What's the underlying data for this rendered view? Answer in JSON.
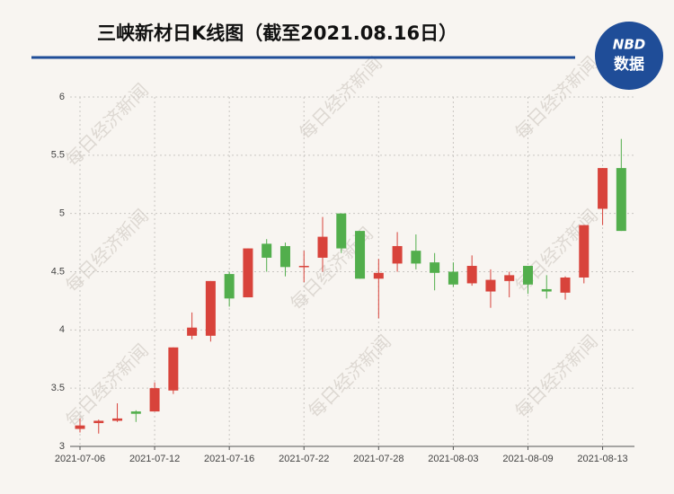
{
  "chart_data": {
    "type": "candlestick",
    "title": "三峡新材日K线图（截至2021.08.16日）",
    "logo": {
      "mark": "NBD",
      "text": "数据"
    },
    "watermark": "每日经济新闻",
    "categories": [
      "2021-07-06",
      null,
      null,
      null,
      "2021-07-12",
      null,
      null,
      null,
      "2021-07-16",
      null,
      null,
      null,
      "2021-07-22",
      null,
      null,
      null,
      "2021-07-28",
      null,
      null,
      null,
      "2021-08-03",
      null,
      null,
      null,
      "2021-08-09",
      null,
      null,
      null,
      "2021-08-13",
      null
    ],
    "open": [
      3.15,
      3.2,
      3.22,
      3.3,
      3.3,
      3.48,
      3.95,
      3.95,
      4.48,
      4.28,
      4.74,
      4.72,
      4.54,
      4.62,
      5.0,
      4.85,
      4.44,
      4.57,
      4.68,
      4.58,
      4.5,
      4.4,
      4.33,
      4.42,
      4.55,
      4.35,
      4.32,
      4.45,
      5.04,
      5.39
    ],
    "close": [
      3.18,
      3.22,
      3.24,
      3.28,
      3.5,
      3.85,
      4.02,
      4.42,
      4.27,
      4.7,
      4.62,
      4.54,
      4.55,
      4.8,
      4.7,
      4.44,
      4.49,
      4.72,
      4.57,
      4.49,
      4.39,
      4.55,
      4.43,
      4.47,
      4.39,
      4.33,
      4.45,
      4.9,
      5.39,
      4.85
    ],
    "high": [
      3.24,
      3.23,
      3.37,
      3.31,
      3.55,
      3.85,
      4.15,
      4.42,
      4.5,
      4.7,
      4.78,
      4.75,
      4.68,
      4.97,
      5.0,
      4.85,
      4.61,
      4.84,
      4.82,
      4.66,
      4.58,
      4.64,
      4.52,
      4.5,
      4.55,
      4.47,
      4.46,
      4.9,
      5.39,
      5.64
    ],
    "low": [
      3.12,
      3.11,
      3.21,
      3.21,
      3.3,
      3.45,
      3.92,
      3.9,
      4.2,
      4.28,
      4.5,
      4.46,
      4.41,
      4.5,
      4.66,
      4.44,
      4.1,
      4.5,
      4.52,
      4.34,
      4.37,
      4.38,
      4.19,
      4.28,
      4.31,
      4.27,
      4.26,
      4.4,
      4.9,
      4.85
    ],
    "up_color": "#d8433b",
    "down_color": "#52ae4c",
    "ylim": [
      3,
      6
    ],
    "yticks": [
      3,
      3.5,
      4,
      4.5,
      5,
      5.5,
      6
    ],
    "grid": true
  }
}
